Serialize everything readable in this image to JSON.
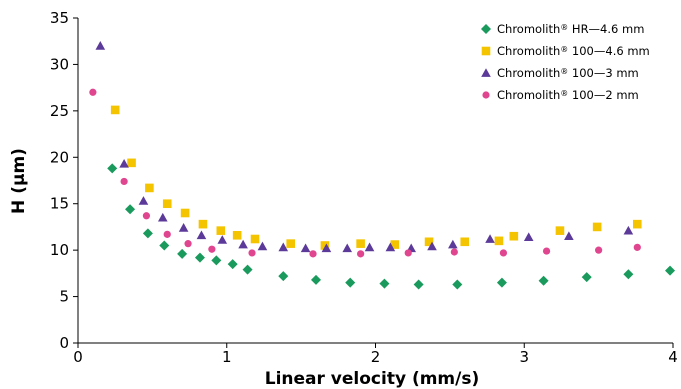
{
  "chart_data": {
    "type": "scatter",
    "title": "",
    "xlabel": "Linear velocity (mm/s)",
    "ylabel": "H (µm)",
    "xlim": [
      0,
      4
    ],
    "ylim": [
      0,
      35
    ],
    "xticks": [
      0,
      1,
      2,
      3,
      4
    ],
    "xtick_labels": [
      "0",
      "1",
      "2",
      "3",
      "4"
    ],
    "yticks": [
      0,
      5,
      10,
      15,
      20,
      25,
      30,
      35
    ],
    "ytick_labels": [
      "0",
      "5",
      "10",
      "15",
      "20",
      "25",
      "30",
      "35"
    ],
    "grid": false,
    "legend_position": "top-right",
    "series": [
      {
        "name": "Chromolith® HR—4.6 mm",
        "legend_parts": [
          "Chromolith",
          "®",
          " HR—4.6 mm"
        ],
        "marker": "diamond",
        "color": "#1a9a5c",
        "points": [
          [
            0.23,
            18.8
          ],
          [
            0.35,
            14.4
          ],
          [
            0.47,
            11.8
          ],
          [
            0.58,
            10.5
          ],
          [
            0.7,
            9.6
          ],
          [
            0.82,
            9.2
          ],
          [
            0.93,
            8.9
          ],
          [
            1.04,
            8.5
          ],
          [
            1.14,
            7.9
          ],
          [
            1.38,
            7.2
          ],
          [
            1.6,
            6.8
          ],
          [
            1.83,
            6.5
          ],
          [
            2.06,
            6.4
          ],
          [
            2.29,
            6.3
          ],
          [
            2.55,
            6.3
          ],
          [
            2.85,
            6.5
          ],
          [
            3.13,
            6.7
          ],
          [
            3.42,
            7.1
          ],
          [
            3.7,
            7.4
          ],
          [
            3.98,
            7.8
          ]
        ]
      },
      {
        "name": "Chromolith® 100—4.6 mm",
        "legend_parts": [
          "Chromolith",
          "®",
          " 100—4.6 mm"
        ],
        "marker": "square",
        "color": "#f5c400",
        "points": [
          [
            0.25,
            25.1
          ],
          [
            0.36,
            19.4
          ],
          [
            0.48,
            16.7
          ],
          [
            0.6,
            15.0
          ],
          [
            0.72,
            14.0
          ],
          [
            0.84,
            12.8
          ],
          [
            0.96,
            12.1
          ],
          [
            1.07,
            11.6
          ],
          [
            1.19,
            11.2
          ],
          [
            1.43,
            10.7
          ],
          [
            1.66,
            10.5
          ],
          [
            1.9,
            10.7
          ],
          [
            2.13,
            10.6
          ],
          [
            2.36,
            10.9
          ],
          [
            2.6,
            10.9
          ],
          [
            2.83,
            11.0
          ],
          [
            2.93,
            11.5
          ],
          [
            3.24,
            12.1
          ],
          [
            3.49,
            12.5
          ],
          [
            3.76,
            12.8
          ]
        ]
      },
      {
        "name": "Chromolith® 100—3 mm",
        "legend_parts": [
          "Chromolith",
          "®",
          " 100—3 mm"
        ],
        "marker": "triangle",
        "color": "#5b3a9a",
        "points": [
          [
            0.15,
            32.0
          ],
          [
            0.31,
            19.3
          ],
          [
            0.44,
            15.3
          ],
          [
            0.57,
            13.5
          ],
          [
            0.71,
            12.4
          ],
          [
            0.83,
            11.6
          ],
          [
            0.97,
            11.1
          ],
          [
            1.11,
            10.6
          ],
          [
            1.24,
            10.4
          ],
          [
            1.38,
            10.3
          ],
          [
            1.53,
            10.2
          ],
          [
            1.67,
            10.2
          ],
          [
            1.81,
            10.2
          ],
          [
            1.96,
            10.3
          ],
          [
            2.1,
            10.3
          ],
          [
            2.24,
            10.2
          ],
          [
            2.38,
            10.4
          ],
          [
            2.52,
            10.6
          ],
          [
            2.77,
            11.2
          ],
          [
            3.03,
            11.4
          ],
          [
            3.3,
            11.5
          ],
          [
            3.7,
            12.1
          ]
        ]
      },
      {
        "name": "Chromolith® 100—2 mm",
        "legend_parts": [
          "Chromolith",
          "®",
          " 100—2 mm"
        ],
        "marker": "circle",
        "color": "#e0458f",
        "points": [
          [
            0.1,
            27.0
          ],
          [
            0.31,
            17.4
          ],
          [
            0.46,
            13.7
          ],
          [
            0.6,
            11.7
          ],
          [
            0.74,
            10.7
          ],
          [
            0.9,
            10.1
          ],
          [
            1.17,
            9.7
          ],
          [
            1.58,
            9.6
          ],
          [
            1.9,
            9.6
          ],
          [
            2.22,
            9.7
          ],
          [
            2.53,
            9.8
          ],
          [
            2.86,
            9.7
          ],
          [
            3.15,
            9.9
          ],
          [
            3.5,
            10.0
          ],
          [
            3.76,
            10.3
          ]
        ]
      }
    ]
  }
}
